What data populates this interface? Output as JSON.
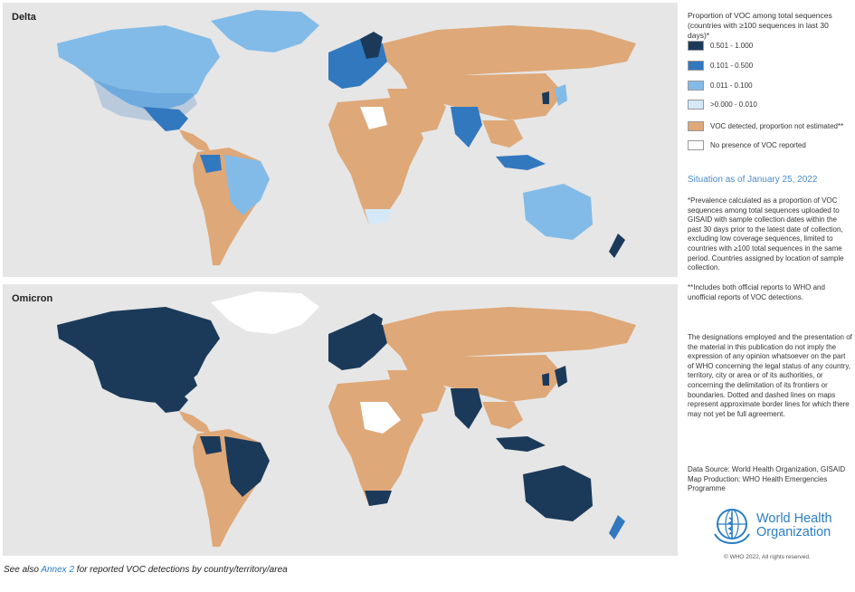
{
  "maps": {
    "delta_title": "Delta",
    "omicron_title": "Omicron"
  },
  "legend": {
    "title": "Proportion of VOC among total sequences (countries with ≥100 sequences in last 30 days)*",
    "items": [
      {
        "label": "0.501 - 1.000",
        "color": "#1b3a5a"
      },
      {
        "label": "0.101 - 0.500",
        "color": "#3278bf"
      },
      {
        "label": "0.011 - 0.100",
        "color": "#82bbe8"
      },
      {
        "label": ">0.000 - 0.010",
        "color": "#d4e8f7"
      },
      {
        "label": "VOC detected, proportion not estimated**",
        "color": "#dea878"
      },
      {
        "label": "No presence of VOC reported",
        "color": "#ffffff"
      }
    ]
  },
  "situation": "Situation as of January 25, 2022",
  "notes": {
    "prevalence": "*Prevalence calculated as a proportion of VOC sequences among total sequences uploaded to GISAID with sample collection dates within the past 30 days prior to the latest date of collection, excluding low coverage sequences, limited to countries with ≥100 total sequences in the same period. Countries assigned by location of sample collection.",
    "includes": "**Includes both official reports to WHO and unofficial reports of VOC detections.",
    "disclaimer": "The designations employed and the presentation of the material in this publication do not imply the expression of any opinion whatsoever on the part of WHO concerning the legal status of any country, territory, city or area or of its authorities, or concerning the delimitation of its frontiers or boundaries. Dotted and dashed lines on maps represent approximate border lines for which there may not yet be full agreement.",
    "source": "Data Source: World Health Organization, GISAID Map Production: WHO Health Emergencies Programme"
  },
  "logo": {
    "name_line1": "World Health",
    "name_line2": "Organization"
  },
  "copyright": "© WHO 2022, All rights reserved.",
  "footer": {
    "prefix": "See also ",
    "link": "Annex 2",
    "suffix": " for reported VOC detections by country/territory/area"
  },
  "colors": {
    "dark": "#1b3a5a",
    "medium": "#3278bf",
    "light": "#82bbe8",
    "very_light": "#d4e8f7",
    "detected": "#dea878",
    "none": "#ffffff",
    "ocean": "#e6e6e6"
  }
}
